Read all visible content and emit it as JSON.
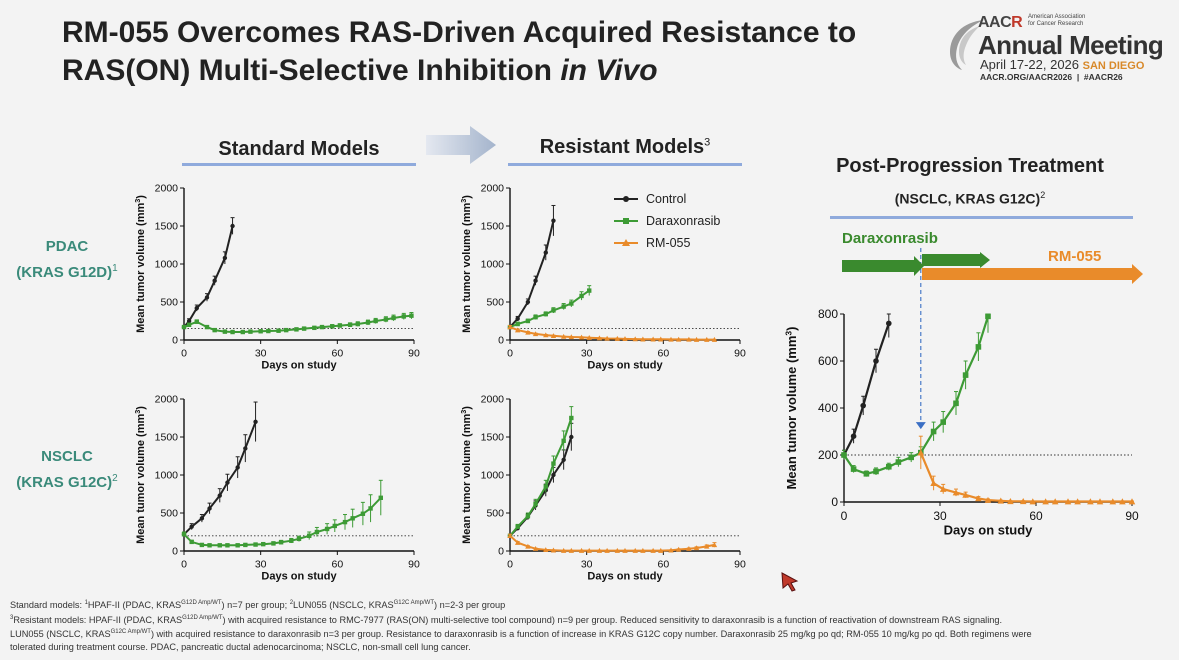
{
  "title": {
    "line1": "RM-055 Overcomes RAS-Driven Acquired Resistance to",
    "line2_a": "RAS(ON) Multi-Selective Inhibition ",
    "line2_b": "in Vivo"
  },
  "logo": {
    "brand": "AAC",
    "brand_r": "R",
    "org_line1": "American Association",
    "org_line2": "for Cancer Research",
    "event": "Annual Meeting",
    "dates": "April 17-22, 2026",
    "city": "SAN DIEGO",
    "url": "AACR.ORG/AACR2026  |  #AACR26"
  },
  "headers": {
    "standard": "Standard Models",
    "resistant": "Resistant Models",
    "resistant_sup": "3",
    "post": "Post-Progression Treatment",
    "post_sub": "(NSCLC, KRAS G12C)",
    "post_sub_sup": "2"
  },
  "rows": [
    {
      "line1": "PDAC",
      "line2": "(KRAS G12D)",
      "sup": "1"
    },
    {
      "line1": "NSCLC",
      "line2": "(KRAS G12C)",
      "sup": "2"
    }
  ],
  "legend": [
    {
      "name": "Control",
      "color": "#222222"
    },
    {
      "name": "Daraxonrasib",
      "color": "#3d9b35"
    },
    {
      "name": "RM-055",
      "color": "#e98b2a"
    }
  ],
  "timeline": {
    "darax_label": "Daraxonrasib",
    "rm_label": "RM-055",
    "darax_color": "#3a8a2e",
    "rm_color": "#e98b2a"
  },
  "axis_titles": {
    "ylabel_pre": "Mean tumor volume (mm",
    "ylabel_sup": "3",
    "ylabel_post": ")",
    "xlabel": "Days on study"
  },
  "chart_data": [
    {
      "id": "std-pdac",
      "type": "line",
      "xlim": [
        0,
        90
      ],
      "ylim": [
        0,
        2000
      ],
      "xticks": [
        0,
        30,
        60,
        90
      ],
      "yticks": [
        0,
        500,
        1000,
        1500,
        2000
      ],
      "threshold": 150,
      "series": [
        {
          "name": "Control",
          "x": [
            0,
            2,
            5,
            9,
            12,
            16,
            19
          ],
          "y": [
            170,
            250,
            420,
            560,
            780,
            1080,
            1500
          ],
          "err": [
            20,
            30,
            40,
            50,
            60,
            80,
            110
          ]
        },
        {
          "name": "Daraxonrasib",
          "x": [
            0,
            2,
            5,
            9,
            12,
            16,
            19,
            23,
            26,
            30,
            33,
            37,
            40,
            44,
            47,
            51,
            54,
            58,
            61,
            65,
            68,
            72,
            75,
            79,
            82,
            86,
            89
          ],
          "y": [
            170,
            200,
            240,
            170,
            130,
            110,
            105,
            105,
            110,
            115,
            118,
            122,
            130,
            140,
            150,
            160,
            170,
            180,
            190,
            200,
            210,
            230,
            250,
            270,
            290,
            310,
            320
          ],
          "err": [
            15,
            20,
            25,
            15,
            12,
            10,
            10,
            10,
            10,
            12,
            12,
            12,
            14,
            15,
            16,
            18,
            20,
            22,
            24,
            26,
            30,
            32,
            34,
            36,
            38,
            40,
            42
          ]
        }
      ]
    },
    {
      "id": "res-pdac",
      "type": "line",
      "xlim": [
        0,
        90
      ],
      "ylim": [
        0,
        2000
      ],
      "xticks": [
        0,
        30,
        60,
        90
      ],
      "yticks": [
        0,
        500,
        1000,
        1500,
        2000
      ],
      "threshold": 150,
      "series": [
        {
          "name": "Control",
          "x": [
            0,
            3,
            7,
            10,
            14,
            17
          ],
          "y": [
            170,
            280,
            500,
            780,
            1150,
            1570
          ],
          "err": [
            20,
            30,
            40,
            60,
            100,
            200
          ]
        },
        {
          "name": "Daraxonrasib",
          "x": [
            0,
            3,
            7,
            10,
            14,
            17,
            21,
            24,
            28,
            31
          ],
          "y": [
            170,
            210,
            250,
            300,
            340,
            390,
            440,
            480,
            580,
            650
          ],
          "err": [
            20,
            25,
            25,
            30,
            30,
            35,
            40,
            45,
            55,
            65
          ]
        },
        {
          "name": "RM-055",
          "x": [
            0,
            3,
            7,
            10,
            14,
            17,
            21,
            24,
            28,
            31,
            35,
            38,
            42,
            45,
            49,
            52,
            56,
            59,
            63,
            66,
            70,
            73,
            77,
            80
          ],
          "y": [
            170,
            130,
            100,
            80,
            65,
            55,
            45,
            40,
            35,
            30,
            25,
            20,
            18,
            15,
            12,
            10,
            10,
            10,
            8,
            8,
            8,
            5,
            5,
            5
          ],
          "err": [
            20,
            15,
            12,
            10,
            8,
            8,
            6,
            6,
            5,
            5,
            4,
            4,
            3,
            3,
            3,
            2,
            2,
            2,
            2,
            2,
            2,
            2,
            2,
            2
          ]
        }
      ]
    },
    {
      "id": "std-nsclc",
      "type": "line",
      "xlim": [
        0,
        90
      ],
      "ylim": [
        0,
        2000
      ],
      "xticks": [
        0,
        30,
        60,
        90
      ],
      "yticks": [
        0,
        500,
        1000,
        1500,
        2000
      ],
      "threshold": 200,
      "series": [
        {
          "name": "Control",
          "x": [
            0,
            3,
            7,
            10,
            14,
            17,
            21,
            24,
            28
          ],
          "y": [
            220,
            320,
            430,
            560,
            730,
            900,
            1100,
            1350,
            1700
          ],
          "err": [
            30,
            40,
            50,
            70,
            90,
            110,
            140,
            180,
            260
          ]
        },
        {
          "name": "Daraxonrasib",
          "x": [
            0,
            3,
            7,
            10,
            14,
            17,
            21,
            24,
            28,
            31,
            35,
            38,
            42,
            45,
            49,
            52,
            56,
            59,
            63,
            66,
            70,
            73,
            77
          ],
          "y": [
            220,
            120,
            80,
            75,
            75,
            75,
            75,
            80,
            85,
            90,
            100,
            115,
            135,
            160,
            200,
            250,
            290,
            330,
            380,
            430,
            490,
            560,
            700
          ],
          "err": [
            30,
            20,
            12,
            10,
            10,
            10,
            10,
            10,
            12,
            15,
            20,
            25,
            30,
            35,
            50,
            60,
            70,
            80,
            100,
            120,
            150,
            180,
            230
          ]
        }
      ]
    },
    {
      "id": "res-nsclc",
      "type": "line",
      "xlim": [
        0,
        90
      ],
      "ylim": [
        0,
        2000
      ],
      "xticks": [
        0,
        30,
        60,
        90
      ],
      "yticks": [
        0,
        500,
        1000,
        1500,
        2000
      ],
      "threshold": 200,
      "series": [
        {
          "name": "Control",
          "x": [
            0,
            3,
            7,
            10,
            14,
            17,
            21,
            24
          ],
          "y": [
            200,
            300,
            450,
            600,
            800,
            1000,
            1200,
            1500
          ],
          "err": [
            20,
            30,
            40,
            60,
            80,
            100,
            130,
            180
          ]
        },
        {
          "name": "Daraxonrasib",
          "x": [
            0,
            3,
            7,
            10,
            14,
            17,
            21,
            24
          ],
          "y": [
            200,
            320,
            460,
            620,
            850,
            1150,
            1450,
            1750
          ],
          "err": [
            20,
            30,
            40,
            60,
            80,
            100,
            130,
            150
          ]
        },
        {
          "name": "RM-055",
          "x": [
            0,
            3,
            7,
            10,
            14,
            17,
            21,
            24,
            28,
            31,
            35,
            38,
            42,
            45,
            49,
            52,
            56,
            59,
            63,
            66,
            70,
            73,
            77,
            80
          ],
          "y": [
            200,
            110,
            60,
            30,
            15,
            10,
            5,
            5,
            5,
            5,
            5,
            5,
            5,
            5,
            5,
            5,
            5,
            5,
            10,
            20,
            30,
            40,
            60,
            80
          ],
          "err": [
            20,
            15,
            10,
            8,
            5,
            4,
            3,
            3,
            3,
            3,
            3,
            3,
            3,
            3,
            3,
            3,
            3,
            3,
            5,
            8,
            10,
            15,
            20,
            30
          ]
        }
      ]
    },
    {
      "id": "post-prog",
      "type": "line",
      "xlim": [
        0,
        90
      ],
      "ylim": [
        0,
        800
      ],
      "xticks": [
        0,
        30,
        60,
        90
      ],
      "yticks": [
        0,
        200,
        400,
        600,
        800
      ],
      "threshold": 200,
      "switch_day": 24,
      "series": [
        {
          "name": "Control",
          "x": [
            0,
            3,
            6,
            10,
            14
          ],
          "y": [
            200,
            280,
            410,
            600,
            760
          ],
          "err": [
            20,
            30,
            40,
            50,
            60
          ]
        },
        {
          "name": "Daraxonrasib",
          "x": [
            0,
            3,
            7,
            10,
            14,
            17,
            21,
            24,
            28,
            31,
            35,
            38,
            42,
            45
          ],
          "y": [
            200,
            140,
            120,
            130,
            150,
            170,
            190,
            210,
            300,
            340,
            420,
            540,
            660,
            790
          ],
          "err": [
            20,
            15,
            12,
            15,
            15,
            20,
            20,
            25,
            40,
            45,
            50,
            60,
            60,
            70
          ]
        },
        {
          "name": "RM-055",
          "x": [
            24,
            28,
            31,
            35,
            38,
            42,
            45,
            49,
            52,
            56,
            59,
            63,
            66,
            70,
            73,
            77,
            80,
            84,
            87,
            90
          ],
          "y": [
            210,
            80,
            55,
            40,
            30,
            15,
            8,
            5,
            3,
            3,
            2,
            2,
            2,
            2,
            2,
            2,
            2,
            2,
            2,
            2
          ],
          "err": [
            70,
            30,
            20,
            15,
            12,
            8,
            5,
            3,
            2,
            2,
            2,
            2,
            2,
            2,
            2,
            2,
            2,
            2,
            2,
            2
          ]
        }
      ]
    }
  ],
  "footnotes": {
    "l1_a": "Standard models: ",
    "l1_s1": "1",
    "l1_b": "HPAF-II (PDAC, KRAS",
    "l1_s2": "G12D Amp/WT",
    "l1_c": ") n=7 per group; ",
    "l1_s3": "2",
    "l1_d": "LUN055 (NSCLC, KRAS",
    "l1_s4": "G12C Amp/WT",
    "l1_e": ") n=2-3 per group",
    "l2_s1": "3",
    "l2_a": "Resistant models: HPAF-II (PDAC, KRAS",
    "l2_s2": "G12D Amp/WT",
    "l2_b": ") with acquired resistance to RMC-7977 (RAS(ON) multi-selective tool compound) n=9 per group. Reduced sensitivity to daraxonrasib is a function of reactivation of downstream RAS signaling.",
    "l3_a": "LUN055 (NSCLC, KRAS",
    "l3_s1": "G12C Amp/WT",
    "l3_b": ") with acquired resistance to daraxonrasib n=3 per group. Resistance to daraxonrasib is a function of increase in KRAS G12C copy number. Daraxonrasib 25 mg/kg po qd; RM-055 10 mg/kg po qd. Both regimens were",
    "l4": "tolerated during treatment course. PDAC, pancreatic ductal adenocarcinoma; NSCLC, non-small cell lung cancer."
  }
}
